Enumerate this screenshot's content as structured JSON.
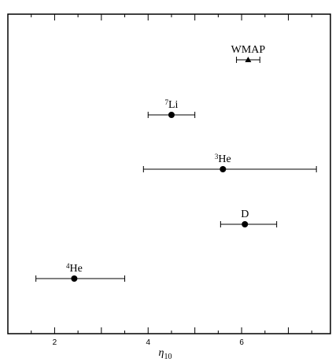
{
  "chart_data": {
    "type": "scatter",
    "xlabel_symbol": "η",
    "xlabel_subscript": "10",
    "xlim": [
      1.0,
      7.9
    ],
    "x_ticks": [
      2,
      4,
      6
    ],
    "grid": false,
    "points": [
      {
        "sup": "",
        "name": "WMAP",
        "x": 6.14,
        "x_low": 5.89,
        "x_high": 6.39,
        "marker": "triangle"
      },
      {
        "sup": "7",
        "name": "Li",
        "x": 4.5,
        "x_low": 4.0,
        "x_high": 5.0,
        "marker": "circle"
      },
      {
        "sup": "3",
        "name": "He",
        "x": 5.6,
        "x_low": 3.9,
        "x_high": 7.6,
        "marker": "circle"
      },
      {
        "sup": "",
        "name": "D",
        "x": 6.07,
        "x_low": 5.55,
        "x_high": 6.75,
        "marker": "circle"
      },
      {
        "sup": "4",
        "name": "He",
        "x": 2.42,
        "x_low": 1.6,
        "x_high": 3.5,
        "marker": "circle"
      }
    ]
  }
}
